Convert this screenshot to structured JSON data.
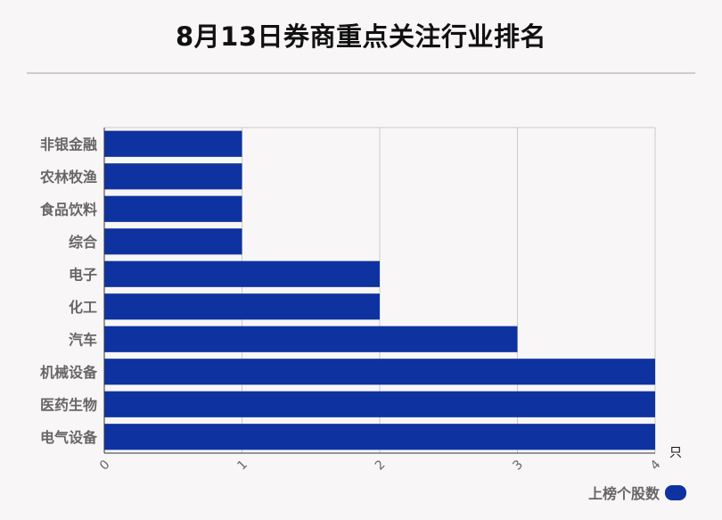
{
  "title": "8月13日券商重点关注行业排名",
  "colors": {
    "bar": "#0e33a0",
    "grid": "#cccccc",
    "axis": "#333333",
    "label": "#666666"
  },
  "chart_data": {
    "type": "bar",
    "orientation": "horizontal",
    "categories": [
      "非银金融",
      "农林牧渔",
      "食品饮料",
      "综合",
      "电子",
      "化工",
      "汽车",
      "机械设备",
      "医药生物",
      "电气设备"
    ],
    "values": [
      1,
      1,
      1,
      1,
      2,
      2,
      3,
      4,
      4,
      4
    ],
    "xlim": [
      0,
      4
    ],
    "xticks": [
      "0",
      "1",
      "2",
      "3",
      "4"
    ],
    "xunit": "只",
    "grid": true,
    "legend": {
      "position": "bottom-right",
      "label": "上榜个股数"
    }
  }
}
